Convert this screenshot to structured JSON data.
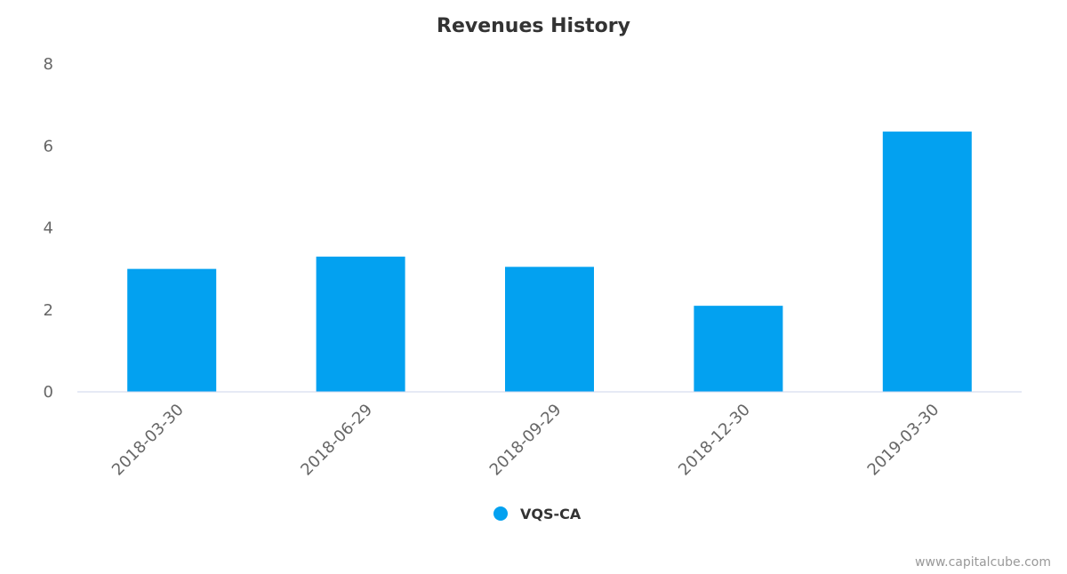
{
  "chart_data": {
    "type": "bar",
    "title": "Revenues History",
    "categories": [
      "2018-03-30",
      "2018-06-29",
      "2018-09-29",
      "2018-12-30",
      "2019-03-30"
    ],
    "series": [
      {
        "name": "VQS-CA",
        "color": "#03a1f0",
        "values": [
          3.0,
          3.3,
          3.05,
          2.1,
          6.35
        ]
      }
    ],
    "y_ticks": [
      "0",
      "2",
      "4",
      "6",
      "8"
    ],
    "ylim": [
      0,
      8
    ],
    "grid": false,
    "legend_position": "bottom-center"
  },
  "credit": "www.capitalcube.com"
}
